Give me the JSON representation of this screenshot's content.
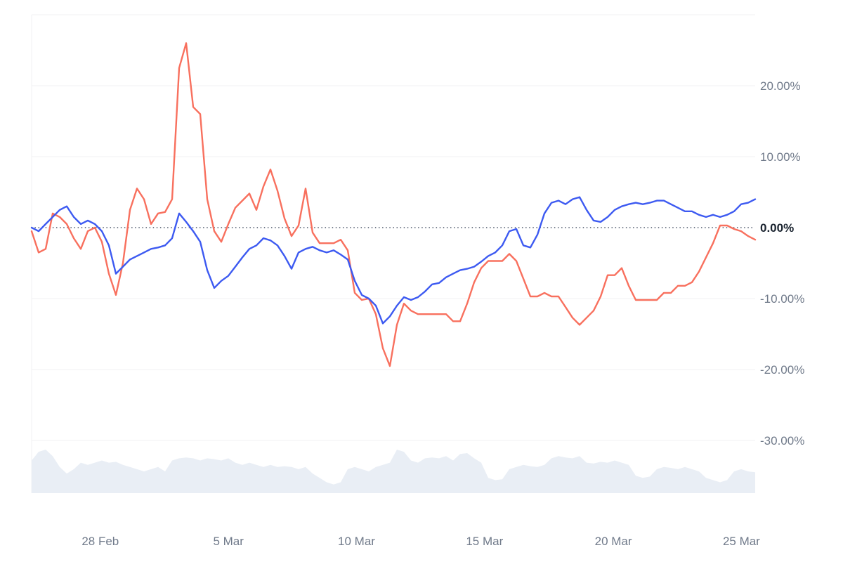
{
  "chart_data": {
    "type": "line",
    "title": "",
    "subtitle": "",
    "legend": [],
    "y_axis": {
      "unit": "%",
      "side": "right",
      "range": [
        -33,
        28
      ],
      "zero_line_style": "dotted",
      "ticks": [
        {
          "value": 30,
          "label": ""
        },
        {
          "value": 20,
          "label": "20.00%"
        },
        {
          "value": 10,
          "label": "10.00%"
        },
        {
          "value": 0,
          "label": "0.00%"
        },
        {
          "value": -10,
          "label": "-10.00%"
        },
        {
          "value": -20,
          "label": "-20.00%"
        },
        {
          "value": -30,
          "label": "-30.00%"
        }
      ]
    },
    "x_axis": {
      "labels": [
        {
          "text": "28 Feb",
          "f": 0.095
        },
        {
          "text": "5 Mar",
          "f": 0.272
        },
        {
          "text": "10 Mar",
          "f": 0.449
        },
        {
          "text": "15 Mar",
          "f": 0.626
        },
        {
          "text": "20 Mar",
          "f": 0.804
        },
        {
          "text": "25 Mar",
          "f": 0.981
        }
      ]
    },
    "series": [
      {
        "id": "blue",
        "name": "series-blue",
        "color": "#3d5af1",
        "unit": "%",
        "values": [
          0.0,
          -0.5,
          0.5,
          1.5,
          2.5,
          3.0,
          1.5,
          0.5,
          1.0,
          0.5,
          -0.5,
          -2.5,
          -6.5,
          -5.5,
          -4.5,
          -4.0,
          -3.5,
          -3.0,
          -2.8,
          -2.5,
          -1.5,
          2.0,
          0.8,
          -0.5,
          -2.0,
          -6.0,
          -8.5,
          -7.5,
          -6.8,
          -5.5,
          -4.2,
          -3.0,
          -2.5,
          -1.5,
          -1.8,
          -2.5,
          -4.0,
          -5.8,
          -3.5,
          -3.0,
          -2.7,
          -3.2,
          -3.5,
          -3.2,
          -3.8,
          -4.5,
          -7.5,
          -9.5,
          -10.0,
          -11.0,
          -13.5,
          -12.5,
          -11.0,
          -9.8,
          -10.2,
          -9.8,
          -9.0,
          -8.0,
          -7.8,
          -7.0,
          -6.5,
          -6.0,
          -5.8,
          -5.5,
          -4.8,
          -4.0,
          -3.5,
          -2.5,
          -0.5,
          -0.2,
          -2.5,
          -2.8,
          -1.0,
          2.0,
          3.5,
          3.8,
          3.3,
          4.0,
          4.3,
          2.5,
          1.0,
          0.8,
          1.5,
          2.5,
          3.0,
          3.3,
          3.5,
          3.3,
          3.5,
          3.8,
          3.8,
          3.3,
          2.8,
          2.3,
          2.3,
          1.8,
          1.5,
          1.8,
          1.5,
          1.8,
          2.3,
          3.3,
          3.5,
          4.0
        ]
      },
      {
        "id": "red",
        "name": "series-red",
        "color": "#f8705e",
        "unit": "%",
        "values": [
          -0.5,
          -3.5,
          -3.0,
          2.0,
          1.5,
          0.5,
          -1.5,
          -3.0,
          -0.5,
          0.0,
          -2.0,
          -6.5,
          -9.5,
          -5.0,
          2.5,
          5.5,
          4.0,
          0.5,
          2.0,
          2.2,
          4.0,
          22.5,
          26.0,
          17.0,
          16.0,
          4.0,
          -0.5,
          -2.0,
          0.5,
          2.8,
          3.8,
          4.8,
          2.5,
          5.8,
          8.2,
          5.2,
          1.3,
          -1.2,
          0.3,
          5.5,
          -0.7,
          -2.2,
          -2.2,
          -2.2,
          -1.7,
          -3.2,
          -9.2,
          -10.2,
          -10.0,
          -12.2,
          -17.0,
          -19.5,
          -13.7,
          -10.7,
          -11.7,
          -12.2,
          -12.2,
          -12.2,
          -12.2,
          -12.2,
          -13.2,
          -13.2,
          -10.7,
          -7.7,
          -5.7,
          -4.7,
          -4.7,
          -4.7,
          -3.7,
          -4.7,
          -7.2,
          -9.7,
          -9.7,
          -9.2,
          -9.7,
          -9.7,
          -11.2,
          -12.7,
          -13.7,
          -12.7,
          -11.7,
          -9.7,
          -6.7,
          -6.7,
          -5.7,
          -8.2,
          -10.2,
          -10.2,
          -10.2,
          -10.2,
          -9.2,
          -9.2,
          -8.2,
          -8.2,
          -7.7,
          -6.2,
          -4.2,
          -2.2,
          0.3,
          0.3,
          -0.2,
          -0.5,
          -1.2,
          -1.7
        ]
      }
    ],
    "volume_silhouette": {
      "description": "light background area strip along bottom of plot, relative heights 0-1",
      "values": [
        0.75,
        0.95,
        1.0,
        0.85,
        0.6,
        0.45,
        0.55,
        0.7,
        0.65,
        0.7,
        0.75,
        0.7,
        0.72,
        0.65,
        0.6,
        0.55,
        0.5,
        0.55,
        0.6,
        0.5,
        0.75,
        0.8,
        0.82,
        0.8,
        0.75,
        0.8,
        0.78,
        0.75,
        0.8,
        0.7,
        0.65,
        0.7,
        0.65,
        0.6,
        0.65,
        0.6,
        0.62,
        0.6,
        0.55,
        0.6,
        0.45,
        0.35,
        0.25,
        0.2,
        0.25,
        0.55,
        0.6,
        0.55,
        0.5,
        0.6,
        0.65,
        0.7,
        1.0,
        0.95,
        0.75,
        0.7,
        0.8,
        0.82,
        0.8,
        0.85,
        0.75,
        0.9,
        0.92,
        0.8,
        0.7,
        0.35,
        0.3,
        0.32,
        0.55,
        0.6,
        0.65,
        0.62,
        0.6,
        0.65,
        0.8,
        0.85,
        0.82,
        0.8,
        0.85,
        0.7,
        0.68,
        0.72,
        0.7,
        0.75,
        0.7,
        0.65,
        0.4,
        0.35,
        0.38,
        0.55,
        0.6,
        0.58,
        0.55,
        0.6,
        0.55,
        0.5,
        0.35,
        0.3,
        0.25,
        0.3,
        0.5,
        0.55,
        0.5,
        0.48
      ]
    },
    "grid": "horizontal"
  },
  "colors": {
    "background": "#ffffff",
    "grid": "#f0f1f3",
    "zero_line": "#525c6e",
    "tick_text": "#707a8a",
    "tick_text_zero": "#1b2430",
    "volume_fill": "#e9eef5",
    "series_blue": "#3d5af1",
    "series_red": "#f8705e"
  }
}
